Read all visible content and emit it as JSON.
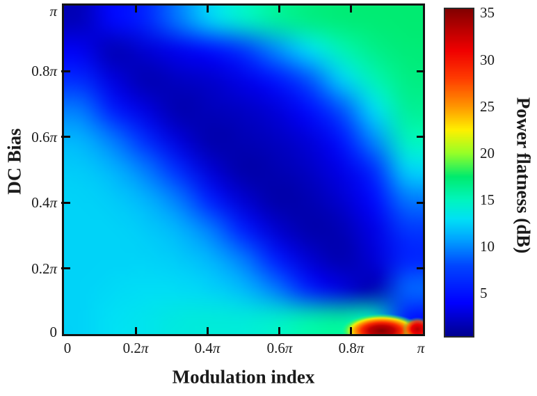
{
  "figure": {
    "x_axis_title": "Modulation index",
    "y_axis_title": "DC Bias",
    "colorbar_title": "Power flatness (dB)"
  },
  "chart_data": {
    "type": "heatmap",
    "title": "",
    "xlabel": "Modulation index",
    "ylabel": "DC Bias",
    "zlabel": "Power flatness (dB)",
    "x_tick_labels": [
      "0",
      "0.2π",
      "0.4π",
      "0.6π",
      "0.8π",
      "π"
    ],
    "y_tick_labels": [
      "π",
      "0.8π",
      "0.6π",
      "0.4π",
      "0.2π",
      "0"
    ],
    "colorbar_tick_labels": [
      "35",
      "30",
      "25",
      "20",
      "15",
      "10",
      "5"
    ],
    "colorbar_tick_values": [
      35,
      30,
      25,
      20,
      15,
      10,
      5
    ],
    "x_range_pi": [
      0,
      1
    ],
    "y_range_pi": [
      0,
      1
    ],
    "z_range_db": [
      0,
      35.5
    ],
    "grid": false,
    "legend_position": "right-colorbar",
    "colormap": "jet",
    "colormap_anchors": [
      [
        0,
        "#000082"
      ],
      [
        4,
        "#0000ff"
      ],
      [
        8,
        "#0046ff"
      ],
      [
        11,
        "#00aaff"
      ],
      [
        13,
        "#00e1f5"
      ],
      [
        15,
        "#00f5be"
      ],
      [
        17.5,
        "#00eb6e"
      ],
      [
        20,
        "#96ff28"
      ],
      [
        22.5,
        "#fff000"
      ],
      [
        25,
        "#ff9600"
      ],
      [
        28,
        "#ff3c00"
      ],
      [
        31,
        "#f00000"
      ],
      [
        33.5,
        "#b40000"
      ],
      [
        35.5,
        "#800000"
      ]
    ],
    "x_values_pi": [
      0.0,
      0.1,
      0.2,
      0.3,
      0.4,
      0.5,
      0.6,
      0.7,
      0.8,
      0.9,
      1.0
    ],
    "y_values_pi": [
      1.0,
      0.9,
      0.8,
      0.7,
      0.6,
      0.5,
      0.4,
      0.3,
      0.2,
      0.1,
      0.0
    ],
    "values_note": "Power flatness (dB); rows ordered from DC bias = pi (top) to 0 (bottom), columns from modulation index 0 (left) to pi (right). Estimated from colors.",
    "values": [
      [
        1.8,
        4.4,
        6.0,
        9.5,
        12.5,
        14.5,
        16.0,
        16.8,
        17.2,
        17.3,
        17.4
      ],
      [
        3.6,
        1.6,
        2.6,
        3.5,
        4.7,
        6.9,
        10.0,
        12.8,
        15.2,
        16.6,
        17.2
      ],
      [
        6.4,
        3.0,
        1.5,
        2.0,
        2.4,
        3.3,
        5.0,
        8.3,
        12.3,
        15.2,
        16.8
      ],
      [
        9.6,
        5.6,
        3.0,
        1.4,
        1.8,
        2.1,
        2.8,
        4.6,
        8.3,
        12.8,
        16.2
      ],
      [
        11.4,
        9.6,
        6.4,
        2.8,
        1.3,
        1.6,
        2.0,
        2.8,
        5.0,
        10.0,
        15.0
      ],
      [
        12.2,
        11.4,
        9.6,
        6.4,
        2.6,
        1.2,
        1.5,
        2.1,
        3.3,
        6.5,
        12.5
      ],
      [
        12.5,
        12.2,
        11.4,
        9.6,
        5.6,
        2.5,
        1.2,
        1.5,
        2.5,
        4.5,
        9.5
      ],
      [
        12.5,
        12.5,
        12.2,
        11.4,
        9.6,
        5.6,
        2.5,
        1.3,
        1.6,
        3.2,
        7.0
      ],
      [
        12.5,
        12.5,
        12.5,
        12.2,
        11.4,
        9.6,
        5.6,
        2.6,
        1.4,
        2.7,
        6.0
      ],
      [
        12.5,
        12.7,
        12.9,
        12.8,
        12.5,
        11.6,
        9.6,
        5.8,
        3.0,
        1.5,
        9.0
      ],
      [
        12.5,
        13.0,
        13.3,
        13.8,
        14.0,
        14.0,
        14.5,
        15.5,
        16.0,
        15.0,
        5.0
      ]
    ],
    "hotspots_note": "Sharp high-flatness peaks hugging the DC-bias=0 edge, values in dB.",
    "hotspots": [
      {
        "x_pi": 0.885,
        "y_pi": 0.01,
        "rx_pi": 0.115,
        "ry_pi": 0.052,
        "stops": [
          [
            0,
            35.3,
            1
          ],
          [
            0.3,
            33,
            1
          ],
          [
            0.48,
            29,
            1
          ],
          [
            0.62,
            25.5,
            1
          ],
          [
            0.75,
            22.5,
            0.95
          ],
          [
            0.87,
            19,
            0.6
          ],
          [
            1,
            15,
            0
          ]
        ]
      },
      {
        "x_pi": 0.985,
        "y_pi": 0.015,
        "rx_pi": 0.042,
        "ry_pi": 0.036,
        "stops": [
          [
            0,
            33.5,
            1
          ],
          [
            0.4,
            31,
            1
          ],
          [
            0.7,
            27,
            0.8
          ],
          [
            1,
            18,
            0
          ]
        ]
      }
    ]
  }
}
